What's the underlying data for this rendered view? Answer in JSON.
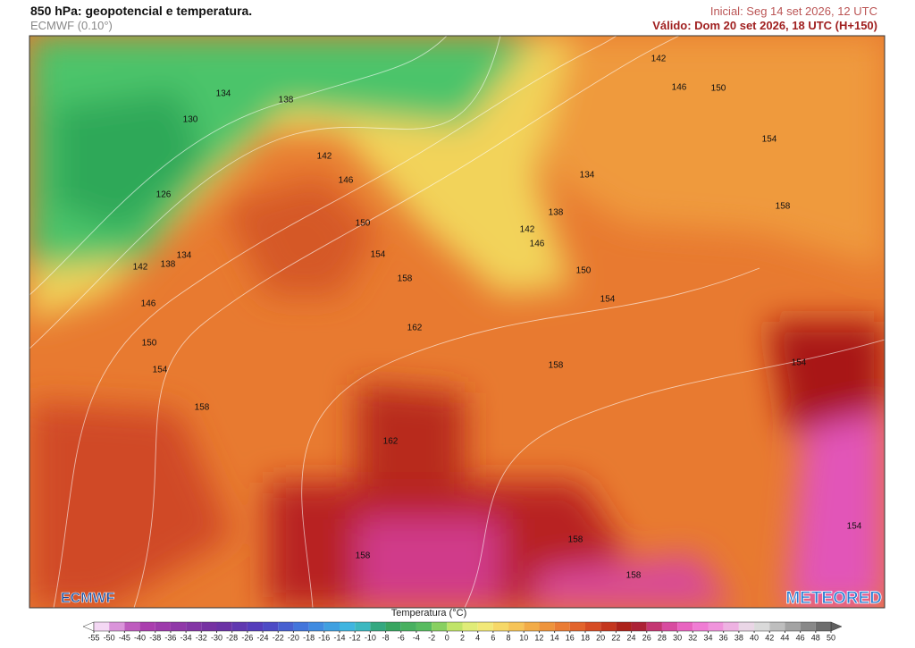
{
  "header": {
    "title": "850 hPa: geopotencial e temperatura.",
    "model": "ECMWF (0.10°)",
    "initial": "Inicial: Seg 14 set 2026, 12 UTC",
    "valid": "Válido: Dom 20 set 2026, 18 UTC (H+150)"
  },
  "map": {
    "contour_labels": [
      "134",
      "138",
      "130",
      "142",
      "146",
      "150",
      "142",
      "146",
      "154",
      "126",
      "134",
      "138",
      "158",
      "150",
      "142",
      "146",
      "142",
      "138",
      "134",
      "154",
      "158",
      "150",
      "154",
      "146",
      "162",
      "150",
      "154",
      "158",
      "154",
      "158",
      "162",
      "158",
      "154",
      "158",
      "158"
    ]
  },
  "logos": {
    "left": "ECMWF",
    "right": "METEORED"
  },
  "colorbar": {
    "label": "Temperatura (°C)",
    "ticks": [
      -55,
      -50,
      -45,
      -40,
      -38,
      -36,
      -34,
      -32,
      -30,
      -28,
      -26,
      -24,
      -22,
      -20,
      -18,
      -16,
      -14,
      -12,
      -10,
      -8,
      -6,
      -4,
      -2,
      0,
      2,
      4,
      6,
      8,
      10,
      12,
      14,
      16,
      18,
      20,
      22,
      24,
      26,
      28,
      30,
      32,
      34,
      36,
      38,
      40,
      42,
      44,
      46,
      48,
      50
    ]
  }
}
